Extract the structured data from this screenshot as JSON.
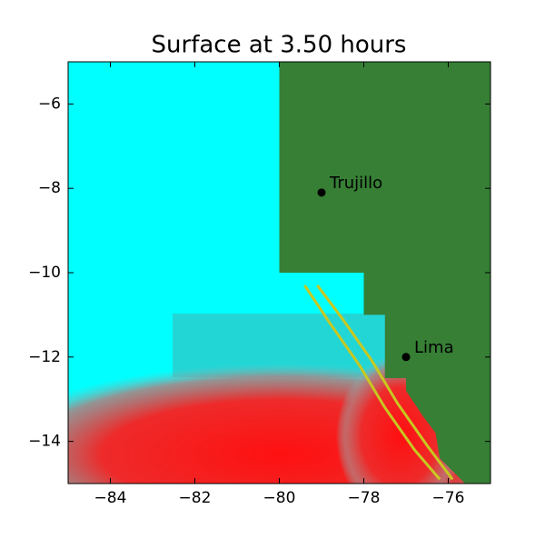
{
  "chart_data": {
    "type": "map",
    "title": "Surface at 3.50 hours",
    "xlim": [
      -85,
      -75
    ],
    "ylim": [
      -15,
      -5
    ],
    "xticks": [
      {
        "value": -84,
        "label": "−84"
      },
      {
        "value": -82,
        "label": "−82"
      },
      {
        "value": -80,
        "label": "−80"
      },
      {
        "value": -78,
        "label": "−78"
      },
      {
        "value": -76,
        "label": "−76"
      }
    ],
    "yticks": [
      {
        "value": -14,
        "label": "−14"
      },
      {
        "value": -12,
        "label": "−12"
      },
      {
        "value": -10,
        "label": "−10"
      },
      {
        "value": -8,
        "label": "−8"
      },
      {
        "value": -6,
        "label": "−6"
      }
    ],
    "background": "#00ffff",
    "land": {
      "color": "#367f35",
      "x": [
        -80,
        -75,
        -75,
        -75.6,
        -76.2,
        -76.3,
        -76.6,
        -77,
        -77,
        -77.5,
        -77.5,
        -78,
        -78,
        -80
      ],
      "y": [
        -5,
        -5,
        -15,
        -15,
        -14.4,
        -13.8,
        -13.4,
        -12.8,
        -12.5,
        -12.5,
        -11,
        -11,
        -10,
        -10
      ]
    },
    "contours": [
      {
        "color": "#c8c820",
        "x": [
          -79.4,
          -78.8,
          -78.1,
          -77.5,
          -76.8,
          -76.2
        ],
        "y": [
          -10.3,
          -11.2,
          -12.2,
          -13.2,
          -14.2,
          -14.9
        ]
      },
      {
        "color": "#c8c820",
        "x": [
          -79.1,
          -78.5,
          -77.8,
          -77.2,
          -76.5,
          -75.9
        ],
        "y": [
          -10.3,
          -11.1,
          -12.1,
          -13.1,
          -14.1,
          -14.9
        ]
      }
    ],
    "points": [
      {
        "name": "Trujillo",
        "x": -79,
        "y": -8.1,
        "color": "#000000"
      },
      {
        "name": "Lima",
        "x": -77,
        "y": -12,
        "color": "#000000"
      }
    ]
  }
}
